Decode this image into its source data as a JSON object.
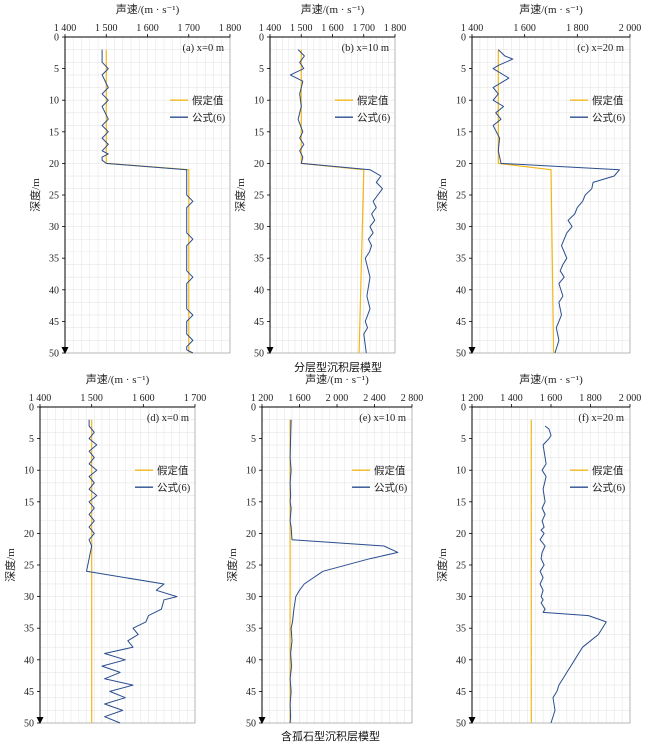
{
  "group_captions": {
    "top": "分层型沉积层模型",
    "bottom": "含孤石型沉积层模型"
  },
  "colors": {
    "assumed": "#f2b619",
    "formula": "#2a4d8f",
    "grid": "#e6e6e6",
    "axis": "#000000"
  },
  "chart_data": [
    {
      "type": "line",
      "panel_label": "(a) x=0 m",
      "xlabel": "声速/(m · s⁻¹)",
      "ylabel": "深度/m",
      "xlim": [
        1400,
        1800
      ],
      "xticks": [
        1400,
        1500,
        1600,
        1700,
        1800
      ],
      "xtick_labels": [
        "1 400",
        "1 500",
        "1 600",
        "1 700",
        "1 800"
      ],
      "ylim": [
        0,
        50
      ],
      "yticks": [
        0,
        5,
        10,
        15,
        20,
        25,
        30,
        35,
        40,
        45,
        50
      ],
      "grid": true,
      "legend_position": "right",
      "series": [
        {
          "name": "假定值",
          "color": "#f2b619",
          "x": [
            1500,
            1500,
            1700,
            1700
          ],
          "y": [
            2,
            20,
            21,
            50
          ]
        },
        {
          "name": "公式(6)",
          "color": "#2a4d8f",
          "x": [
            1490,
            1490,
            1505,
            1490,
            1505,
            1490,
            1505,
            1490,
            1505,
            1490,
            1505,
            1490,
            1505,
            1490,
            1505,
            1490,
            1490,
            1500,
            1695,
            1695,
            1710,
            1695,
            1695,
            1710,
            1695,
            1695,
            1710,
            1695,
            1695,
            1710,
            1695,
            1695,
            1710,
            1695,
            1695,
            1710
          ],
          "y": [
            2,
            4,
            5,
            6,
            8,
            9,
            10,
            11,
            13,
            14,
            15,
            16,
            17,
            18,
            18.5,
            19,
            19.5,
            20,
            21,
            25,
            26,
            27,
            31,
            32,
            33,
            37,
            38,
            39,
            43,
            44,
            45,
            47,
            48,
            49,
            49.5,
            50
          ]
        }
      ]
    },
    {
      "type": "line",
      "panel_label": "(b) x=10 m",
      "xlabel": "声速/(m · s⁻¹)",
      "ylabel": "深度/m",
      "xlim": [
        1400,
        1800
      ],
      "xticks": [
        1400,
        1500,
        1600,
        1700,
        1800
      ],
      "xtick_labels": [
        "1 400",
        "1 500",
        "1 600",
        "1 700",
        "1 800"
      ],
      "ylim": [
        0,
        50
      ],
      "yticks": [
        0,
        5,
        10,
        15,
        20,
        25,
        30,
        35,
        40,
        45,
        50
      ],
      "grid": true,
      "legend_position": "right",
      "series": [
        {
          "name": "假定值",
          "color": "#f2b619",
          "x": [
            1500,
            1500,
            1700,
            1685
          ],
          "y": [
            2,
            20,
            21,
            50
          ]
        },
        {
          "name": "公式(6)",
          "color": "#2a4d8f",
          "x": [
            1490,
            1510,
            1495,
            1508,
            1465,
            1505,
            1495,
            1500,
            1490,
            1505,
            1495,
            1508,
            1495,
            1505,
            1500,
            1720,
            1755,
            1740,
            1760,
            1745,
            1730,
            1740,
            1725,
            1735,
            1720,
            1730,
            1715,
            1725,
            1718,
            1705,
            1720,
            1710,
            1720,
            1705,
            1712,
            1700,
            1708
          ],
          "y": [
            2,
            3,
            4,
            5,
            6,
            7,
            9,
            11,
            13,
            15,
            16,
            17,
            18,
            19,
            20,
            21,
            22,
            23,
            24,
            25,
            26,
            27,
            28,
            29,
            30,
            31,
            32,
            33,
            34,
            35,
            38,
            41,
            43,
            45,
            46,
            47,
            50
          ]
        }
      ]
    },
    {
      "type": "line",
      "panel_label": "(c) x=20 m",
      "xlabel": "声速/(m · s⁻¹)",
      "ylabel": "深度/m",
      "xlim": [
        1400,
        2000
      ],
      "xticks": [
        1400,
        1600,
        1800,
        2000
      ],
      "xtick_labels": [
        "1 400",
        "1 600",
        "1 800",
        "2 000"
      ],
      "ylim": [
        0,
        50
      ],
      "yticks": [
        0,
        5,
        10,
        15,
        20,
        25,
        30,
        35,
        40,
        45,
        50
      ],
      "grid": true,
      "legend_position": "right",
      "series": [
        {
          "name": "假定值",
          "color": "#f2b619",
          "x": [
            1500,
            1500,
            1700,
            1710
          ],
          "y": [
            2,
            20,
            21,
            50
          ]
        },
        {
          "name": "公式(6)",
          "color": "#2a4d8f",
          "x": [
            1500,
            1525,
            1555,
            1500,
            1480,
            1540,
            1480,
            1500,
            1480,
            1520,
            1490,
            1510,
            1480,
            1505,
            1500,
            1510,
            1960,
            1940,
            1860,
            1855,
            1830,
            1820,
            1800,
            1790,
            1765,
            1780,
            1760,
            1740,
            1760,
            1745,
            1735,
            1750,
            1730,
            1745,
            1730,
            1740,
            1720,
            1730,
            1715
          ],
          "y": [
            2,
            3,
            3.5,
            4.5,
            5,
            6.5,
            8,
            9,
            10,
            11,
            12,
            13,
            14,
            16,
            18,
            20,
            21,
            22,
            23,
            24,
            25,
            26,
            27,
            28,
            29,
            30,
            31,
            33,
            35,
            36,
            37,
            38,
            39,
            41,
            42,
            44,
            46,
            48,
            50
          ]
        }
      ]
    },
    {
      "type": "line",
      "panel_label": "(d) x=0 m",
      "xlabel": "声速/(m · s⁻¹)",
      "ylabel": "深度/m",
      "xlim": [
        1400,
        1700
      ],
      "xticks": [
        1400,
        1500,
        1600,
        1700
      ],
      "xtick_labels": [
        "1 400",
        "1 500",
        "1 600",
        "1 700"
      ],
      "ylim": [
        0,
        50
      ],
      "yticks": [
        0,
        5,
        10,
        15,
        20,
        25,
        30,
        35,
        40,
        45,
        50
      ],
      "grid": true,
      "legend_position": "right",
      "series": [
        {
          "name": "假定值",
          "color": "#f2b619",
          "x": [
            1500,
            1500
          ],
          "y": [
            2,
            50
          ]
        },
        {
          "name": "公式(6)",
          "color": "#2a4d8f",
          "x": [
            1495,
            1495,
            1505,
            1495,
            1510,
            1495,
            1505,
            1495,
            1510,
            1495,
            1505,
            1495,
            1510,
            1495,
            1505,
            1495,
            1505,
            1495,
            1505,
            1495,
            1500,
            1490,
            1640,
            1625,
            1665,
            1640,
            1635,
            1610,
            1605,
            1580,
            1590,
            1570,
            1580,
            1525,
            1565,
            1520,
            1555,
            1525,
            1580,
            1535,
            1565,
            1525,
            1560,
            1525,
            1555
          ],
          "y": [
            2,
            3,
            4,
            5,
            6,
            7,
            8,
            9,
            10,
            11,
            12,
            13,
            14,
            15,
            16,
            17,
            18,
            19,
            20,
            21,
            22,
            26,
            28,
            29,
            30,
            30.5,
            32,
            33,
            34,
            35,
            36,
            37,
            38,
            39,
            40,
            41,
            42,
            43,
            44,
            45,
            46,
            47,
            48,
            49,
            50
          ]
        }
      ]
    },
    {
      "type": "line",
      "panel_label": "(e) x=10 m",
      "xlabel": "声速/(m · s⁻¹)",
      "ylabel": "深度/m",
      "xlim": [
        1200,
        2800
      ],
      "xticks": [
        1200,
        1600,
        2000,
        2400,
        2800
      ],
      "xtick_labels": [
        "1 200",
        "1 600",
        "2 000",
        "2 400",
        "2 800"
      ],
      "ylim": [
        0,
        50
      ],
      "yticks": [
        0,
        5,
        10,
        15,
        20,
        25,
        30,
        35,
        40,
        45,
        50
      ],
      "grid": true,
      "legend_position": "right",
      "series": [
        {
          "name": "假定值",
          "color": "#f2b619",
          "x": [
            1500,
            1500
          ],
          "y": [
            2,
            50
          ]
        },
        {
          "name": "公式(6)",
          "color": "#2a4d8f",
          "x": [
            1510,
            1505,
            1500,
            1510,
            1500,
            1505,
            1500,
            1510,
            1505,
            1500,
            1510,
            1520,
            2500,
            2650,
            2350,
            1850,
            1650,
            1600,
            1560,
            1540,
            1525,
            1510,
            1520,
            1505,
            1515,
            1500,
            1510,
            1500,
            1505,
            1500
          ],
          "y": [
            2,
            5,
            8,
            10,
            12,
            14,
            15,
            16,
            17,
            18,
            19,
            21,
            22,
            23,
            24,
            26,
            28,
            29,
            30,
            32,
            34,
            35,
            37,
            39,
            41,
            43,
            45,
            47,
            49,
            50
          ]
        }
      ]
    },
    {
      "type": "line",
      "panel_label": "(f) x=20 m",
      "xlabel": "声速/(m · s⁻¹)",
      "ylabel": "深度/m",
      "xlim": [
        1200,
        2000
      ],
      "xticks": [
        1200,
        1400,
        1600,
        1800,
        2000
      ],
      "xtick_labels": [
        "1 200",
        "1 400",
        "1 600",
        "1 800",
        "2 000"
      ],
      "ylim": [
        0,
        50
      ],
      "yticks": [
        0,
        5,
        10,
        15,
        20,
        25,
        30,
        35,
        40,
        45,
        50
      ],
      "grid": true,
      "legend_position": "right",
      "series": [
        {
          "name": "假定值",
          "color": "#f2b619",
          "x": [
            1500,
            1500
          ],
          "y": [
            2,
            50
          ]
        },
        {
          "name": "公式(6)",
          "color": "#2a4d8f",
          "x": [
            1570,
            1590,
            1600,
            1590,
            1560,
            1575,
            1555,
            1575,
            1560,
            1570,
            1555,
            1570,
            1555,
            1565,
            1550,
            1565,
            1545,
            1570,
            1555,
            1550,
            1565,
            1545,
            1560,
            1545,
            1560,
            1550,
            1560,
            1550,
            1570,
            1560,
            1790,
            1880,
            1840,
            1800,
            1760,
            1740,
            1720,
            1700,
            1680,
            1660,
            1640,
            1630,
            1610,
            1620,
            1600
          ],
          "y": [
            3,
            3.5,
            4.5,
            5,
            6,
            9,
            10,
            11,
            13,
            15,
            16,
            17,
            18,
            19,
            19.5,
            20,
            21,
            22,
            23,
            24,
            25,
            26,
            27,
            28,
            29,
            30,
            30.5,
            31,
            32,
            32.5,
            33,
            34,
            36,
            37,
            38,
            39,
            40,
            41,
            42,
            43,
            44,
            45,
            46,
            48,
            50
          ]
        }
      ]
    }
  ]
}
